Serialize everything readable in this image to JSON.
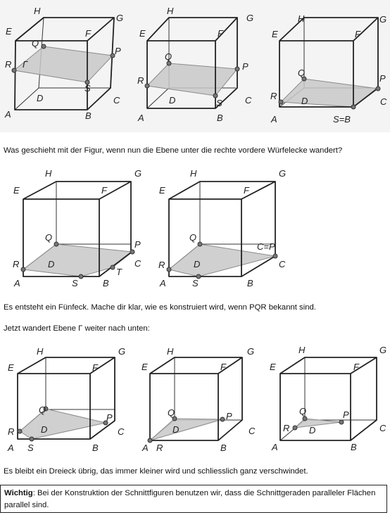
{
  "row1_labels": {
    "fig1": {
      "E": "E",
      "H": "H",
      "G": "G",
      "F": "F",
      "Q": "Q",
      "P": "P",
      "R": "R",
      "Gamma": "Γ",
      "S": "S",
      "D": "D",
      "C": "C",
      "A": "A",
      "B": "B"
    },
    "fig2": {
      "E": "E",
      "H": "H",
      "G": "G",
      "F": "F",
      "Q": "Q",
      "P": "P",
      "R": "R",
      "S": "S",
      "D": "D",
      "C": "C",
      "A": "A",
      "B": "B"
    },
    "fig3": {
      "E": "E",
      "H": "H",
      "G": "G",
      "F": "F",
      "Q": "Q",
      "P": "P",
      "R": "R",
      "D": "D",
      "C": "C",
      "A": "A",
      "SB": "S=B"
    }
  },
  "text1": "Was geschieht mit der Figur, wenn nun die Ebene unter die rechte vordere Würfelecke wandert?",
  "row2_labels": {
    "fig4": {
      "E": "E",
      "H": "H",
      "G": "G",
      "F": "F",
      "Q": "Q",
      "P": "P",
      "R": "R",
      "D": "D",
      "C": "C",
      "T": "T",
      "A": "A",
      "S": "S",
      "B": "B"
    },
    "fig5": {
      "E": "E",
      "H": "H",
      "G": "G",
      "F": "F",
      "Q": "Q",
      "CP": "C=P",
      "R": "R",
      "D": "D",
      "C": "C",
      "A": "A",
      "S": "S",
      "B": "B"
    }
  },
  "text2": "Es entsteht ein Fünfeck. Mache dir klar, wie es konstruiert wird, wenn PQR bekannt sind.",
  "text3": "Jetzt wandert Ebene Γ weiter nach unten:",
  "row3_labels": {
    "fig6": {
      "E": "E",
      "H": "H",
      "G": "G",
      "F": "F",
      "Q": "Q",
      "P": "P",
      "R": "R",
      "D": "D",
      "C": "C",
      "A": "A",
      "S": "S",
      "B": "B"
    },
    "fig7": {
      "E": "E",
      "H": "H",
      "G": "G",
      "F": "F",
      "Q": "Q",
      "P": "P",
      "D": "D",
      "C": "C",
      "A": "A",
      "R": "R",
      "B": "B"
    },
    "fig8": {
      "E": "E",
      "H": "H",
      "G": "G",
      "F": "F",
      "Q": "Q",
      "P": "P",
      "R": "R",
      "D": "D",
      "C": "C",
      "A": "A",
      "B": "B"
    }
  },
  "text4": "Es bleibt ein Dreieck übrig, das immer kleiner wird und schliesslich ganz verschwindet.",
  "note": {
    "label": "Wichtig",
    "text": ": Bei der Konstruktion der Schnittfiguren benutzen wir, dass die Schnittgeraden paralleler Flächen parallel sind."
  }
}
